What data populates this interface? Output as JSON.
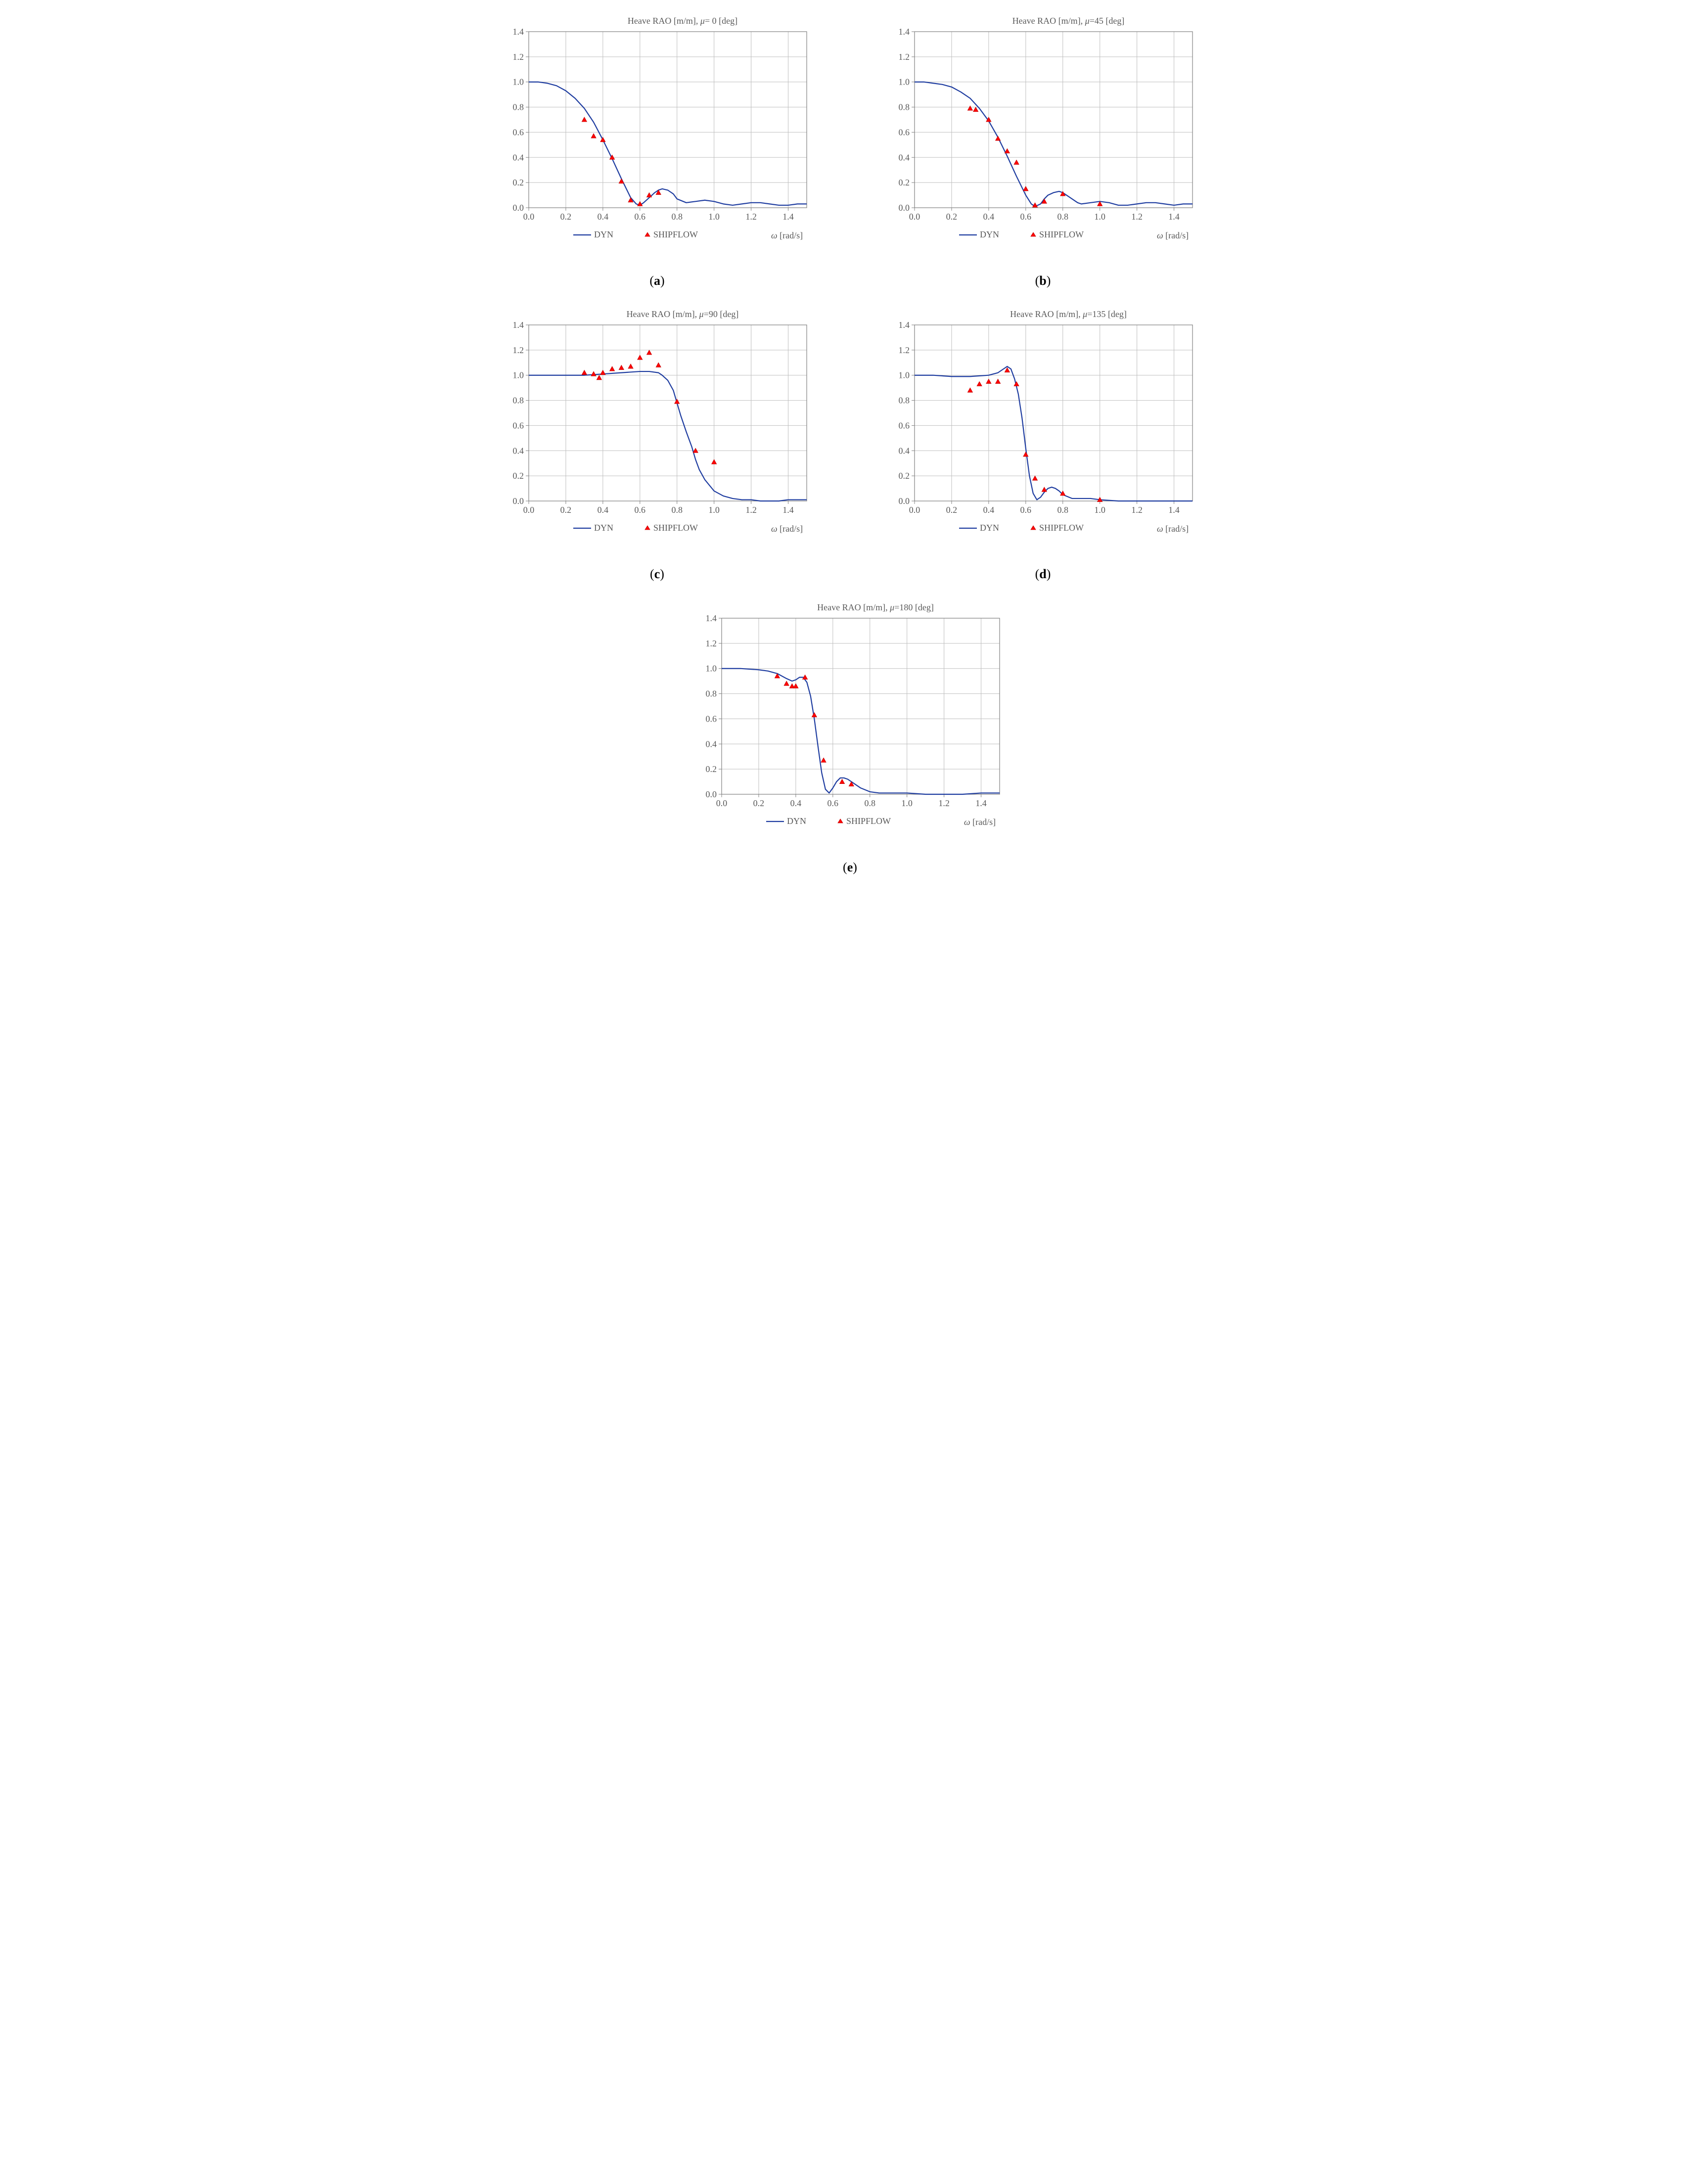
{
  "global": {
    "xlabel": "ω [rad/s]",
    "xlabel_fontsize": 18,
    "xlim": [
      0.0,
      1.5
    ],
    "xtick_step": 0.2,
    "ytick_step": 0.2,
    "tick_fontsize": 18,
    "title_fontsize": 18,
    "background_color": "#ffffff",
    "grid_color": "#bfbfbf",
    "axis_color": "#808080",
    "line_color": "#1f3da0",
    "line_width": 2.2,
    "marker_color_fill": "#ff0000",
    "marker_color_stroke": "#c00000",
    "marker_size": 5,
    "legend": {
      "dyn": "DYN",
      "shipflow": "SHIPFLOW",
      "fontsize": 18,
      "text_color": "#595959"
    }
  },
  "panels": [
    {
      "id": "a",
      "caption_letter": "a",
      "title": "Heave RAO [m/m], μ= 0 [deg]",
      "ylim": [
        0.0,
        1.4
      ],
      "dyn": {
        "x": [
          0.0,
          0.05,
          0.1,
          0.15,
          0.2,
          0.25,
          0.3,
          0.35,
          0.4,
          0.45,
          0.5,
          0.55,
          0.58,
          0.6,
          0.62,
          0.65,
          0.68,
          0.7,
          0.72,
          0.75,
          0.78,
          0.8,
          0.85,
          0.9,
          0.95,
          1.0,
          1.05,
          1.1,
          1.15,
          1.2,
          1.25,
          1.3,
          1.35,
          1.4,
          1.45,
          1.5
        ],
        "y": [
          1.0,
          1.0,
          0.99,
          0.97,
          0.93,
          0.87,
          0.79,
          0.68,
          0.54,
          0.39,
          0.23,
          0.08,
          0.03,
          0.02,
          0.04,
          0.08,
          0.12,
          0.14,
          0.15,
          0.14,
          0.11,
          0.07,
          0.04,
          0.05,
          0.06,
          0.05,
          0.03,
          0.02,
          0.03,
          0.04,
          0.04,
          0.03,
          0.02,
          0.02,
          0.03,
          0.03
        ]
      },
      "shipflow": {
        "x": [
          0.3,
          0.35,
          0.4,
          0.45,
          0.5,
          0.55,
          0.6,
          0.65,
          0.7
        ],
        "y": [
          0.7,
          0.57,
          0.54,
          0.4,
          0.21,
          0.06,
          0.03,
          0.1,
          0.12
        ]
      }
    },
    {
      "id": "b",
      "caption_letter": "b",
      "title": "Heave RAO [m/m], μ=45 [deg]",
      "ylim": [
        0.0,
        1.4
      ],
      "dyn": {
        "x": [
          0.0,
          0.05,
          0.1,
          0.15,
          0.2,
          0.25,
          0.3,
          0.35,
          0.4,
          0.45,
          0.5,
          0.55,
          0.6,
          0.63,
          0.65,
          0.68,
          0.7,
          0.72,
          0.75,
          0.78,
          0.8,
          0.82,
          0.85,
          0.88,
          0.9,
          0.95,
          1.0,
          1.05,
          1.1,
          1.15,
          1.2,
          1.25,
          1.3,
          1.35,
          1.4,
          1.45,
          1.5
        ],
        "y": [
          1.0,
          1.0,
          0.99,
          0.98,
          0.96,
          0.92,
          0.87,
          0.79,
          0.69,
          0.56,
          0.41,
          0.25,
          0.1,
          0.03,
          0.01,
          0.03,
          0.07,
          0.1,
          0.12,
          0.13,
          0.12,
          0.1,
          0.07,
          0.04,
          0.03,
          0.04,
          0.05,
          0.04,
          0.02,
          0.02,
          0.03,
          0.04,
          0.04,
          0.03,
          0.02,
          0.03,
          0.03
        ]
      },
      "shipflow": {
        "x": [
          0.3,
          0.33,
          0.4,
          0.45,
          0.5,
          0.55,
          0.6,
          0.65,
          0.7,
          0.8,
          1.0
        ],
        "y": [
          0.79,
          0.78,
          0.7,
          0.55,
          0.45,
          0.36,
          0.15,
          0.02,
          0.05,
          0.11,
          0.03
        ]
      }
    },
    {
      "id": "c",
      "caption_letter": "c",
      "title": "Heave RAO [m/m], μ=90 [deg]",
      "ylim": [
        0.0,
        1.4
      ],
      "dyn": {
        "x": [
          0.0,
          0.1,
          0.2,
          0.3,
          0.4,
          0.5,
          0.6,
          0.65,
          0.7,
          0.72,
          0.75,
          0.78,
          0.8,
          0.82,
          0.85,
          0.88,
          0.9,
          0.92,
          0.95,
          1.0,
          1.05,
          1.1,
          1.15,
          1.2,
          1.25,
          1.3,
          1.35,
          1.4,
          1.45,
          1.5
        ],
        "y": [
          1.0,
          1.0,
          1.0,
          1.0,
          1.01,
          1.02,
          1.03,
          1.03,
          1.02,
          1.0,
          0.96,
          0.88,
          0.78,
          0.68,
          0.55,
          0.43,
          0.33,
          0.25,
          0.17,
          0.08,
          0.04,
          0.02,
          0.01,
          0.01,
          0.0,
          0.0,
          0.0,
          0.01,
          0.01,
          0.01
        ]
      },
      "shipflow": {
        "x": [
          0.3,
          0.35,
          0.38,
          0.4,
          0.45,
          0.5,
          0.55,
          0.6,
          0.65,
          0.7,
          0.8,
          0.9,
          1.0
        ],
        "y": [
          1.02,
          1.01,
          0.98,
          1.02,
          1.05,
          1.06,
          1.07,
          1.14,
          1.18,
          1.08,
          0.79,
          0.4,
          0.31
        ]
      }
    },
    {
      "id": "d",
      "caption_letter": "d",
      "title": "Heave RAO [m/m], μ=135 [deg]",
      "ylim": [
        0.0,
        1.4
      ],
      "dyn": {
        "x": [
          0.0,
          0.1,
          0.2,
          0.3,
          0.4,
          0.45,
          0.48,
          0.5,
          0.52,
          0.54,
          0.56,
          0.58,
          0.6,
          0.62,
          0.64,
          0.66,
          0.68,
          0.7,
          0.72,
          0.74,
          0.76,
          0.78,
          0.8,
          0.85,
          0.9,
          0.95,
          1.0,
          1.1,
          1.2,
          1.3,
          1.4,
          1.5
        ],
        "y": [
          1.0,
          1.0,
          0.99,
          0.99,
          1.0,
          1.02,
          1.05,
          1.07,
          1.05,
          0.97,
          0.85,
          0.66,
          0.42,
          0.2,
          0.06,
          0.01,
          0.03,
          0.07,
          0.1,
          0.11,
          0.1,
          0.08,
          0.05,
          0.02,
          0.02,
          0.02,
          0.01,
          0.0,
          0.0,
          0.0,
          0.0,
          0.0
        ]
      },
      "shipflow": {
        "x": [
          0.3,
          0.35,
          0.4,
          0.45,
          0.5,
          0.55,
          0.6,
          0.65,
          0.7,
          0.8,
          1.0
        ],
        "y": [
          0.88,
          0.93,
          0.95,
          0.95,
          1.04,
          0.93,
          0.37,
          0.18,
          0.09,
          0.06,
          0.01
        ]
      }
    },
    {
      "id": "e",
      "caption_letter": "e",
      "title": "Heave RAO [m/m], μ=180 [deg]",
      "ylim": [
        0.0,
        1.4
      ],
      "dyn": {
        "x": [
          0.0,
          0.1,
          0.2,
          0.25,
          0.3,
          0.35,
          0.38,
          0.4,
          0.42,
          0.44,
          0.46,
          0.48,
          0.5,
          0.52,
          0.54,
          0.56,
          0.58,
          0.6,
          0.62,
          0.64,
          0.66,
          0.68,
          0.7,
          0.75,
          0.8,
          0.85,
          0.9,
          1.0,
          1.1,
          1.2,
          1.3,
          1.4,
          1.5
        ],
        "y": [
          1.0,
          1.0,
          0.99,
          0.98,
          0.96,
          0.92,
          0.9,
          0.91,
          0.93,
          0.93,
          0.89,
          0.78,
          0.6,
          0.38,
          0.17,
          0.04,
          0.01,
          0.05,
          0.1,
          0.13,
          0.13,
          0.12,
          0.1,
          0.05,
          0.02,
          0.01,
          0.01,
          0.01,
          0.0,
          0.0,
          0.0,
          0.01,
          0.01
        ]
      },
      "shipflow": {
        "x": [
          0.3,
          0.35,
          0.38,
          0.4,
          0.45,
          0.5,
          0.55,
          0.65,
          0.7
        ],
        "y": [
          0.94,
          0.88,
          0.86,
          0.86,
          0.93,
          0.63,
          0.27,
          0.1,
          0.08
        ]
      }
    }
  ]
}
